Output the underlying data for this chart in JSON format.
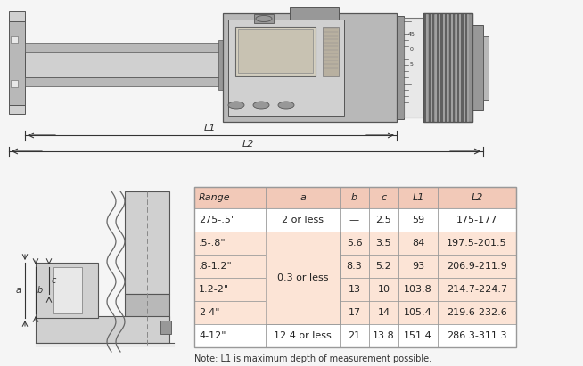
{
  "table_header": [
    "Range",
    "a",
    "b",
    "c",
    "L1",
    "L2"
  ],
  "table_rows": [
    [
      "275-.5\"",
      "2 or less",
      "—",
      "2.5",
      "59",
      "175-177"
    ],
    [
      ".5-.8\"",
      "",
      "5.6",
      "3.5",
      "84",
      "197.5-201.5"
    ],
    [
      ".8-1.2\"",
      "0.3 or less",
      "8.3",
      "5.2",
      "93",
      "206.9-211.9"
    ],
    [
      "1.2-2\"",
      "",
      "13",
      "10",
      "103.8",
      "214.7-224.7"
    ],
    [
      "2-4\"",
      "",
      "17",
      "14",
      "105.4",
      "219.6-232.6"
    ],
    [
      "4-12\"",
      "12.4 or less",
      "21",
      "13.8",
      "151.4",
      "286.3-311.3"
    ]
  ],
  "header_bg": "#f2c9b8",
  "row_bg_alt": "#fce4d6",
  "row_bg_white": "#ffffff",
  "border_color": "#999999",
  "text_color": "#222222",
  "note_color": "#333333",
  "bg_color": "#f5f5f5",
  "gray_light": "#d0d0d0",
  "gray_mid": "#b8b8b8",
  "gray_dark": "#989898",
  "gray_xdark": "#787878",
  "diagram_edge": "#555555"
}
